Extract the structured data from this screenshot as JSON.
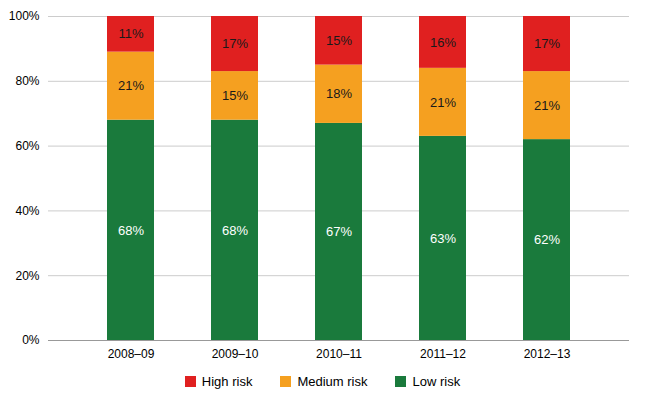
{
  "chart_data": {
    "type": "bar",
    "stacked": true,
    "categories": [
      "2008–09",
      "2009–10",
      "2010–11",
      "2011–12",
      "2012–13"
    ],
    "series": [
      {
        "name": "Low risk",
        "color": "#1a7a3c",
        "values": [
          68,
          68,
          67,
          63,
          62
        ],
        "value_labels": [
          "68%",
          "68%",
          "67%",
          "63%",
          "62%"
        ]
      },
      {
        "name": "Medium risk",
        "color": "#f5a020",
        "values": [
          21,
          15,
          18,
          21,
          21
        ],
        "value_labels": [
          "21%",
          "15%",
          "18%",
          "21%",
          "21%"
        ]
      },
      {
        "name": "High risk",
        "color": "#e02020",
        "values": [
          11,
          17,
          15,
          16,
          17
        ],
        "value_labels": [
          "11%",
          "17%",
          "15%",
          "16%",
          "17%"
        ]
      }
    ],
    "ylim": [
      0,
      100
    ],
    "yticks": [
      {
        "value": 0,
        "label": "0%"
      },
      {
        "value": 20,
        "label": "20%"
      },
      {
        "value": 40,
        "label": "40%"
      },
      {
        "value": 60,
        "label": "60%"
      },
      {
        "value": 80,
        "label": "80%"
      },
      {
        "value": 100,
        "label": "100%"
      }
    ],
    "grid": true,
    "legend": "bottom",
    "data_labels": true
  }
}
